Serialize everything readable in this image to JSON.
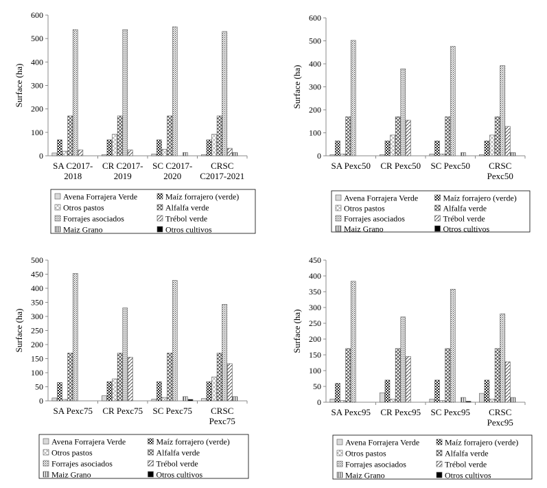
{
  "legend_labels": [
    "Avena Forrajera Verde",
    "Maíz forrajero (verde)",
    "Otros pastos",
    "Alfalfa verde",
    "Forrajes asociados",
    "Trébol verde",
    "Maiz Grano",
    "Otros cultivos"
  ],
  "patterns": [
    "light-gray",
    "dark-checker",
    "diagonal-cross-light",
    "diagonal-cross",
    "dotted-dense",
    "diagonal-stripe",
    "vertical-stripe",
    "solid-black"
  ],
  "chart_data": [
    {
      "type": "bar",
      "ylabel": "Surface (ha)",
      "ylim": [
        0,
        600
      ],
      "yticks": [
        0,
        100,
        200,
        300,
        400,
        500,
        600
      ],
      "categories": [
        [
          "SA C2017-",
          "2018"
        ],
        [
          "CR C2017-",
          "2019"
        ],
        [
          "SC C2017-",
          "2020"
        ],
        [
          "CRSC",
          "C2017-2021"
        ]
      ],
      "legend": "bottom",
      "series": [
        {
          "name": "Avena Forrajera Verde",
          "values": [
            12,
            5,
            8,
            5
          ]
        },
        {
          "name": "Maíz forrajero (verde)",
          "values": [
            68,
            68,
            68,
            68
          ]
        },
        {
          "name": "Otros pastos",
          "values": [
            20,
            92,
            28,
            92
          ]
        },
        {
          "name": "Alfalfa verde",
          "values": [
            170,
            170,
            170,
            170
          ]
        },
        {
          "name": "Forrajes asociados",
          "values": [
            538,
            538,
            550,
            530
          ]
        },
        {
          "name": "Trébol verde",
          "values": [
            25,
            25,
            0,
            32
          ]
        },
        {
          "name": "Maiz Grano",
          "values": [
            0,
            0,
            14,
            14
          ]
        },
        {
          "name": "Otros cultivos",
          "values": [
            0,
            0,
            0,
            0
          ]
        }
      ]
    },
    {
      "type": "bar",
      "ylabel": "Surface (ha)",
      "ylim": [
        0,
        600
      ],
      "yticks": [
        0,
        100,
        200,
        300,
        400,
        500,
        600
      ],
      "categories": [
        [
          "SA Pexc50"
        ],
        [
          "CR Pexc50"
        ],
        [
          "SC Pexc50"
        ],
        [
          "CRSC",
          "Pexc50"
        ]
      ],
      "legend": "bottom",
      "series": [
        {
          "name": "Avena Forrajera Verde",
          "values": [
            5,
            5,
            8,
            5
          ]
        },
        {
          "name": "Maíz forrajero (verde)",
          "values": [
            65,
            65,
            65,
            65
          ]
        },
        {
          "name": "Otros pastos",
          "values": [
            8,
            90,
            8,
            90
          ]
        },
        {
          "name": "Alfalfa verde",
          "values": [
            170,
            170,
            170,
            170
          ]
        },
        {
          "name": "Forrajes asociados",
          "values": [
            502,
            378,
            476,
            392
          ]
        },
        {
          "name": "Trébol verde",
          "values": [
            0,
            155,
            0,
            128
          ]
        },
        {
          "name": "Maiz Grano",
          "values": [
            0,
            0,
            14,
            14
          ]
        },
        {
          "name": "Otros cultivos",
          "values": [
            0,
            0,
            0,
            0
          ]
        }
      ]
    },
    {
      "type": "bar",
      "ylabel": "Surface (ha)",
      "ylim": [
        0,
        500
      ],
      "yticks": [
        0,
        50,
        100,
        150,
        200,
        250,
        300,
        350,
        400,
        450,
        500
      ],
      "categories": [
        [
          "SA Pexc75"
        ],
        [
          "CR Pexc75"
        ],
        [
          "SC Pexc75"
        ],
        [
          "CRSC",
          "Pexc75"
        ]
      ],
      "legend": "bottom",
      "series": [
        {
          "name": "Avena Forrajera Verde",
          "values": [
            10,
            18,
            6,
            8
          ]
        },
        {
          "name": "Maíz forrajero (verde)",
          "values": [
            65,
            68,
            68,
            68
          ]
        },
        {
          "name": "Otros pastos",
          "values": [
            5,
            78,
            12,
            85
          ]
        },
        {
          "name": "Alfalfa verde",
          "values": [
            170,
            170,
            170,
            170
          ]
        },
        {
          "name": "Forrajes asociados",
          "values": [
            453,
            330,
            428,
            343
          ]
        },
        {
          "name": "Trébol verde",
          "values": [
            0,
            155,
            0,
            132
          ]
        },
        {
          "name": "Maiz Grano",
          "values": [
            0,
            0,
            15,
            15
          ]
        },
        {
          "name": "Otros cultivos",
          "values": [
            0,
            0,
            5,
            0
          ]
        }
      ]
    },
    {
      "type": "bar",
      "ylabel": "Surface (ha)",
      "ylim": [
        0,
        450
      ],
      "yticks": [
        0,
        50,
        100,
        150,
        200,
        250,
        300,
        350,
        400,
        450
      ],
      "categories": [
        [
          "SA Pexc95"
        ],
        [
          "CR Pexc95"
        ],
        [
          "SC Pexc95"
        ],
        [
          "CRSC",
          "Pexc95"
        ]
      ],
      "legend": "bottom",
      "series": [
        {
          "name": "Avena Forrajera Verde",
          "values": [
            10,
            30,
            10,
            28
          ]
        },
        {
          "name": "Maíz forrajero (verde)",
          "values": [
            60,
            70,
            70,
            70
          ]
        },
        {
          "name": "Otros pastos",
          "values": [
            5,
            10,
            5,
            10
          ]
        },
        {
          "name": "Alfalfa verde",
          "values": [
            170,
            170,
            170,
            170
          ]
        },
        {
          "name": "Forrajes asociados",
          "values": [
            383,
            270,
            358,
            280
          ]
        },
        {
          "name": "Trébol verde",
          "values": [
            0,
            145,
            0,
            128
          ]
        },
        {
          "name": "Maiz Grano",
          "values": [
            0,
            0,
            15,
            15
          ]
        },
        {
          "name": "Otros cultivos",
          "values": [
            0,
            0,
            3,
            0
          ]
        }
      ]
    }
  ]
}
